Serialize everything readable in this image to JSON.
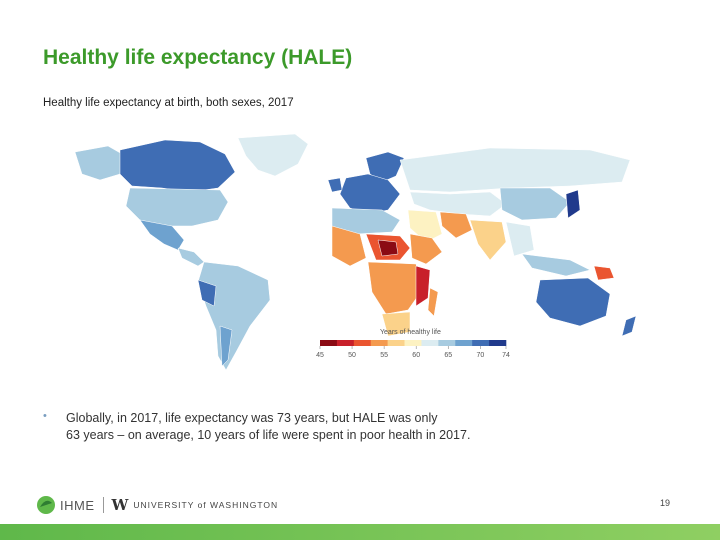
{
  "slide": {
    "title": "Healthy life expectancy (HALE)",
    "subtitle": "Healthy life expectancy at birth, both sexes, 2017",
    "bullet_marker": "•",
    "body_line1": "Globally, in 2017, life expectancy was 73 years, but HALE was only",
    "body_line2": "63 years – on average, 10 years of life were spent in poor health in 2017.",
    "page_number": "19"
  },
  "legend": {
    "title": "Years of healthy life",
    "ticks": [
      "45",
      "50",
      "55",
      "60",
      "65",
      "70",
      "74"
    ],
    "colors": [
      "#8b0b14",
      "#c8202a",
      "#ea5530",
      "#f49a4f",
      "#fbd28a",
      "#fdf2c2",
      "#dcecf1",
      "#a7cbe0",
      "#6ea2cf",
      "#3f6db4",
      "#203a8c"
    ]
  },
  "footer": {
    "ihme_label": "IHME",
    "uw_mark": "W",
    "uw_label": "UNIVERSITY of WASHINGTON"
  },
  "colors": {
    "title_green": "#3c9a2a",
    "bar_green": "#5fb84a"
  }
}
